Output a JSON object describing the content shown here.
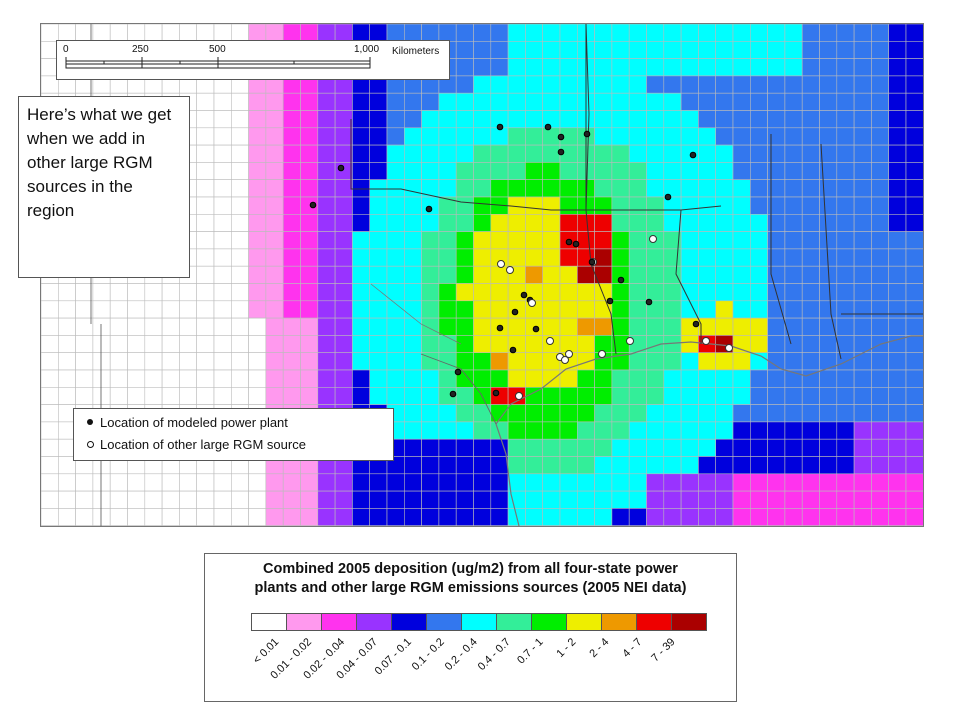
{
  "scale_bar": {
    "ticks": [
      "0",
      "250",
      "500",
      "1,000"
    ],
    "unit": "Kilometers"
  },
  "callout": {
    "text": "Here’s what we get when we add in other large RGM sources in the region"
  },
  "point_legend": {
    "modeled_plant": "Location of modeled power plant",
    "other_source": "Location of other large RGM source"
  },
  "color_legend": {
    "title_line1": "Combined 2005 deposition (ug/m2) from all four-state power",
    "title_line2": "plants and other large RGM emissions sources (2005 NEI data)",
    "bins": [
      {
        "label": "< 0.01",
        "color": "#ffffff"
      },
      {
        "label": "0.01 - 0.02",
        "color": "#ff99ee"
      },
      {
        "label": "0.02 - 0.04",
        "color": "#ff33ee"
      },
      {
        "label": "0.04 - 0.07",
        "color": "#9933ff"
      },
      {
        "label": "0.07 - 0.1",
        "color": "#0000dd"
      },
      {
        "label": "0.1 - 0.2",
        "color": "#3377ee"
      },
      {
        "label": "0.2 - 0.4",
        "color": "#00ffff"
      },
      {
        "label": "0.4 - 0.7",
        "color": "#33ee99"
      },
      {
        "label": "0.7 - 1",
        "color": "#00ee00"
      },
      {
        "label": "1 - 2",
        "color": "#eeee00"
      },
      {
        "label": "2 - 4",
        "color": "#ee9900"
      },
      {
        "label": "4 - 7",
        "color": "#ee0000"
      },
      {
        "label": "7 - 39",
        "color": "#aa0000"
      }
    ]
  },
  "map_colors": {
    "coast": "#777777",
    "border": "#333333",
    "grid": "#bbbbbb"
  }
}
